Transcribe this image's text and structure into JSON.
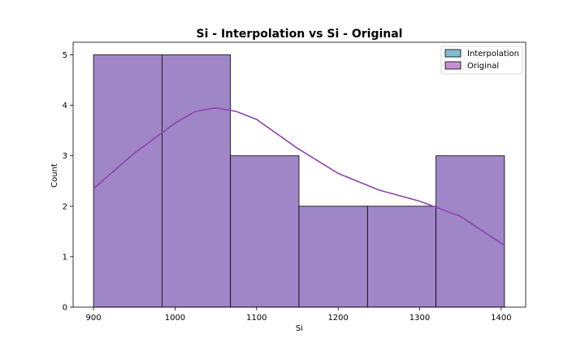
{
  "chart_data": {
    "type": "bar",
    "title": "Si - Interpolation vs Si - Original",
    "xlabel": "Si",
    "ylabel": "Count",
    "xlim": [
      875,
      1430
    ],
    "ylim": [
      0,
      5.25
    ],
    "xticks": [
      900,
      1000,
      1100,
      1200,
      1300,
      1400
    ],
    "yticks": [
      0,
      1,
      2,
      3,
      4,
      5
    ],
    "bin_edges": [
      900,
      984,
      1068,
      1152,
      1236,
      1320,
      1404
    ],
    "series": [
      {
        "name": "Interpolation",
        "values": [
          5,
          5,
          3,
          2,
          2,
          3
        ],
        "color": "#7fbfcf"
      },
      {
        "name": "Original",
        "values": [
          5,
          5,
          3,
          2,
          2,
          3
        ],
        "color": "#c58fd3"
      }
    ],
    "overlap_color": "#9f86c7",
    "kde": {
      "color": "#8e44ad",
      "x": [
        900,
        950,
        1000,
        1025,
        1050,
        1075,
        1100,
        1150,
        1200,
        1250,
        1300,
        1350,
        1404
      ],
      "y": [
        2.35,
        3.05,
        3.65,
        3.88,
        3.95,
        3.88,
        3.72,
        3.15,
        2.65,
        2.32,
        2.1,
        1.8,
        1.22
      ]
    },
    "legend_position": "top-right",
    "grid": false
  }
}
